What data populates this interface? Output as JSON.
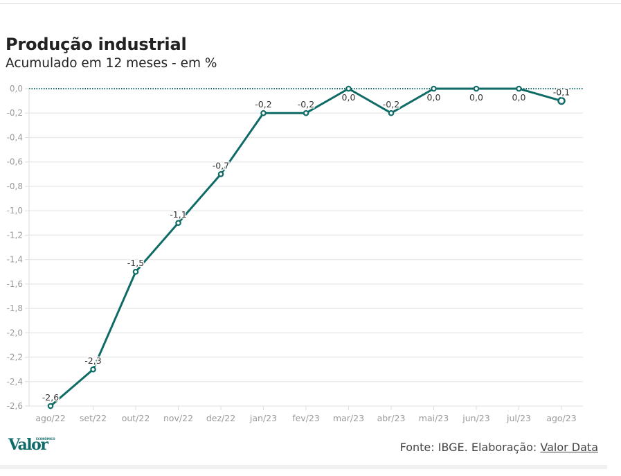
{
  "header": {
    "title": "Produção industrial",
    "subtitle": "Acumulado em 12 meses - em %"
  },
  "footer": {
    "logo_text": "Valor",
    "logo_small_text": "ECONÔMICO",
    "source_prefix": "Fonte: IBGE. Elaboração: ",
    "source_link": "Valor Data"
  },
  "colors": {
    "line": "#0f6b66",
    "grid": "#ebebeb",
    "zero_line": "#0f6b66"
  },
  "chart_data": {
    "type": "line",
    "title": "Produção industrial",
    "subtitle": "Acumulado em 12 meses - em %",
    "xlabel": "",
    "ylabel": "",
    "categories": [
      "ago/22",
      "set/22",
      "out/22",
      "nov/22",
      "dez/22",
      "jan/23",
      "fev/23",
      "mar/23",
      "abr/23",
      "mai/23",
      "jun/23",
      "jul/23",
      "ago/23"
    ],
    "series": [
      {
        "name": "Produção industrial",
        "values": [
          -2.6,
          -2.3,
          -1.5,
          -1.1,
          -0.7,
          -0.2,
          -0.2,
          0.0,
          -0.2,
          0.0,
          0.0,
          0.0,
          -0.1
        ],
        "labels": [
          "-2,6",
          "-2,3",
          "-1,5",
          "-1,1",
          "-0,7",
          "-0,2",
          "-0,2",
          "0,0",
          "-0,2",
          "0,0",
          "0,0",
          "0,0",
          "-0,1"
        ]
      }
    ],
    "ylim": [
      -2.6,
      0.0
    ],
    "yticks": [
      0.0,
      -0.2,
      -0.4,
      -0.6,
      -0.8,
      -1.0,
      -1.2,
      -1.4,
      -1.6,
      -1.8,
      -2.0,
      -2.2,
      -2.4,
      -2.6
    ],
    "ytick_labels": [
      "0,0",
      "-0,2",
      "-0,4",
      "-0,6",
      "-0,8",
      "-1,0",
      "-1,2",
      "-1,4",
      "-1,6",
      "-1,8",
      "-2,0",
      "-2,2",
      "-2,4",
      "-2,6"
    ],
    "grid": true,
    "zero_line": "dotted",
    "legend": "none"
  }
}
